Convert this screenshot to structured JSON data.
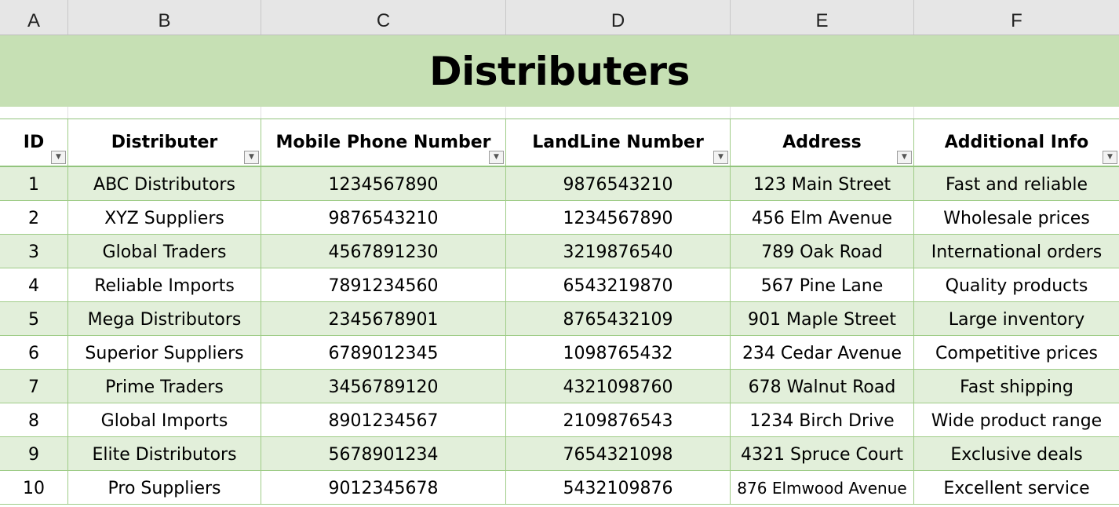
{
  "column_letters": [
    "A",
    "B",
    "C",
    "D",
    "E",
    "F"
  ],
  "title": "Distributers",
  "headers": [
    "ID",
    "Distributer",
    "Mobile Phone Number",
    "LandLine Number",
    "Address",
    "Additional Info"
  ],
  "rows": [
    {
      "id": "1",
      "distributer": "ABC Distributors",
      "mobile": "1234567890",
      "landline": "9876543210",
      "address": "123 Main Street",
      "info": "Fast and reliable"
    },
    {
      "id": "2",
      "distributer": "XYZ Suppliers",
      "mobile": "9876543210",
      "landline": "1234567890",
      "address": "456 Elm Avenue",
      "info": "Wholesale prices"
    },
    {
      "id": "3",
      "distributer": "Global Traders",
      "mobile": "4567891230",
      "landline": "3219876540",
      "address": "789 Oak Road",
      "info": "International orders"
    },
    {
      "id": "4",
      "distributer": "Reliable Imports",
      "mobile": "7891234560",
      "landline": "6543219870",
      "address": "567 Pine Lane",
      "info": "Quality products"
    },
    {
      "id": "5",
      "distributer": "Mega Distributors",
      "mobile": "2345678901",
      "landline": "8765432109",
      "address": "901 Maple Street",
      "info": "Large inventory"
    },
    {
      "id": "6",
      "distributer": "Superior Suppliers",
      "mobile": "6789012345",
      "landline": "1098765432",
      "address": "234 Cedar Avenue",
      "info": "Competitive prices"
    },
    {
      "id": "7",
      "distributer": "Prime Traders",
      "mobile": "3456789120",
      "landline": "4321098760",
      "address": "678 Walnut Road",
      "info": "Fast shipping"
    },
    {
      "id": "8",
      "distributer": "Global Imports",
      "mobile": "8901234567",
      "landline": "2109876543",
      "address": "1234 Birch Drive",
      "info": "Wide product range"
    },
    {
      "id": "9",
      "distributer": "Elite Distributors",
      "mobile": "5678901234",
      "landline": "7654321098",
      "address": "4321 Spruce Court",
      "info": "Exclusive deals"
    },
    {
      "id": "10",
      "distributer": "Pro Suppliers",
      "mobile": "9012345678",
      "landline": "5432109876",
      "address": "876 Elmwood Avenue",
      "info": "Excellent service"
    }
  ],
  "filter_icon": "dropdown-arrow-icon",
  "colors": {
    "title_band": "#c6e0b4",
    "alt_row": "#e2efda",
    "grid_line": "#9fcc87",
    "column_header_bg": "#e6e6e6"
  }
}
